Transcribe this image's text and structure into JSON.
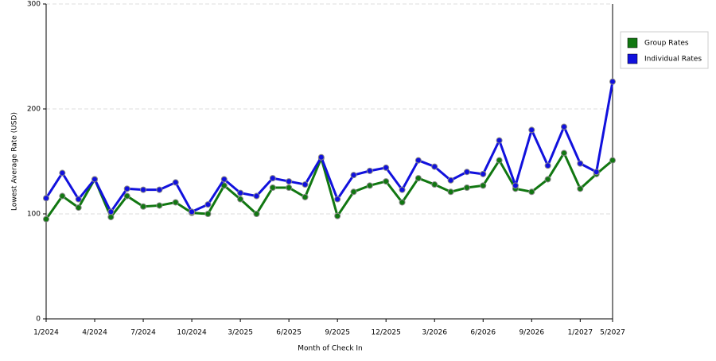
{
  "chart_data": {
    "type": "line",
    "x_label": "Month of Check In",
    "y_label": "Lowest Average Rate (USD)",
    "categories": [
      "1/2024",
      null,
      null,
      "4/2024",
      null,
      null,
      "7/2024",
      null,
      null,
      "10/2024",
      null,
      null,
      "3/2025",
      null,
      null,
      "6/2025",
      null,
      null,
      "9/2025",
      null,
      null,
      "12/2025",
      null,
      null,
      "3/2026",
      null,
      null,
      "6/2026",
      null,
      null,
      "9/2026",
      null,
      null,
      "1/2027",
      null,
      "5/2027"
    ],
    "series": [
      {
        "name": "Group Rates",
        "color": "#117711",
        "values": [
          95,
          117,
          106,
          133,
          97,
          117,
          107,
          108,
          111,
          101,
          100,
          127,
          114,
          100,
          125,
          125,
          116,
          153,
          98,
          121,
          127,
          131,
          111,
          134,
          128,
          121,
          125,
          127,
          151,
          124,
          121,
          133,
          158,
          124,
          138,
          151
        ]
      },
      {
        "name": "Individual Rates",
        "color": "#1111dd",
        "values": [
          115,
          139,
          114,
          133,
          102,
          124,
          123,
          123,
          130,
          102,
          109,
          133,
          120,
          117,
          134,
          131,
          128,
          154,
          114,
          137,
          141,
          144,
          123,
          151,
          145,
          132,
          140,
          138,
          170,
          127,
          180,
          146,
          183,
          148,
          140,
          226
        ]
      }
    ],
    "ylim": [
      0,
      300
    ],
    "yticks": [
      0,
      100,
      200,
      300
    ],
    "grid": true,
    "legend": "right"
  }
}
